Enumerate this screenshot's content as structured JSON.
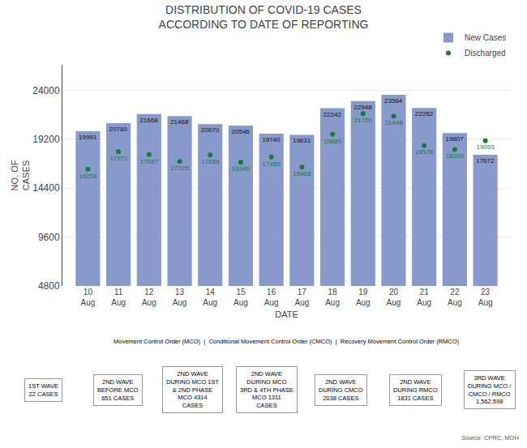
{
  "chart_data": {
    "type": "bar",
    "title": "DISTRIBUTION OF COVID-19 CASES\nACCORDING TO DATE OF REPORTING",
    "xlabel": "DATE",
    "ylabel": "NO. OF\nCASES",
    "categories": [
      "10\nAug",
      "11\nAug",
      "12\nAug",
      "13\nAug",
      "14\nAug",
      "15\nAug",
      "16\nAug",
      "17\nAug",
      "18\nAug",
      "19\nAug",
      "20\nAug",
      "21\nAug",
      "22\nAug",
      "23\nAug"
    ],
    "series": [
      {
        "name": "New Cases",
        "type": "bar",
        "color": "#8899cc",
        "values": [
          19991,
          20780,
          21668,
          21468,
          20670,
          20546,
          19740,
          19631,
          22242,
          22948,
          23564,
          22262,
          19807,
          17672
        ]
      },
      {
        "name": "Discharged",
        "type": "scatter",
        "color": "#1a7a3c",
        "marker": "circle",
        "values": [
          16258,
          17973,
          17687,
          17025,
          17655,
          16945,
          17450,
          16468,
          19680,
          21720,
          21448,
          18576,
          18200,
          19053
        ]
      }
    ],
    "ylim": [
      4800,
      26500
    ],
    "yticks": [
      4800,
      9600,
      14400,
      19200,
      24000
    ],
    "grid": true,
    "legend": "upper right",
    "data_labels": true,
    "annotations": [
      "Movement Control Order (MCO)  |  Conditional Movement Control Order (CMCO)  |  Recovery Movement Control Order (RMCO)",
      "Source: CPRC, MOH"
    ],
    "badges": [
      "1ST WAVE\n22 CASES",
      "2ND WAVE\nBEFORE MCO\n651 CASES",
      "2ND WAVE\nDURING MCO 1ST\n& 2ND PHASE\nMCO 4314\nCASES",
      "2ND WAVE\nDURING MCO\n3RD & 4TH PHASE\nMCO 1311\nCASES",
      "2ND WAVE\nDURING CMCO\n2038 CASES",
      "2ND WAVE\nDURING RMCO\n1831 CASES",
      "3RD WAVE\nDURING MCO /\nCMCO / RMCO\n1,562,598"
    ]
  }
}
